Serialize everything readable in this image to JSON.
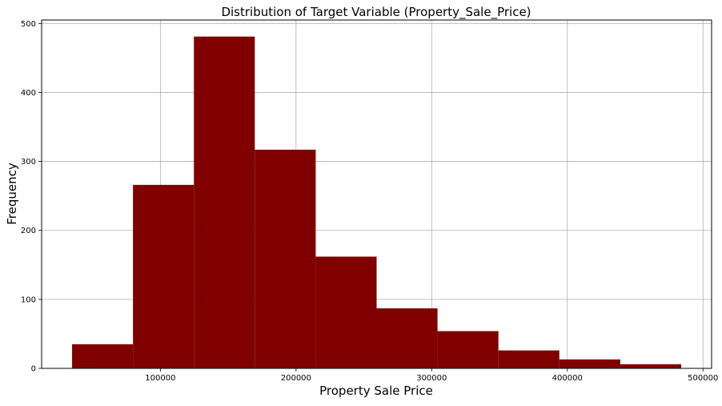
{
  "chart_data": {
    "type": "bar",
    "title": "Distribution of Target Variable (Property_Sale_Price)",
    "xlabel": "Property Sale Price",
    "ylabel": "Frequency",
    "bin_edges": [
      34900,
      79800,
      124700,
      169600,
      214500,
      259400,
      304300,
      349200,
      394100,
      439000,
      483900
    ],
    "values": [
      35,
      266,
      481,
      317,
      162,
      87,
      54,
      26,
      13,
      6
    ],
    "xlim": [
      12450,
      506350
    ],
    "ylim": [
      0,
      505
    ],
    "xticks": [
      100000,
      200000,
      300000,
      400000,
      500000
    ],
    "xtick_labels": [
      "100000",
      "200000",
      "300000",
      "400000",
      "500000"
    ],
    "yticks": [
      0,
      100,
      200,
      300,
      400,
      500
    ],
    "ytick_labels": [
      "0",
      "100",
      "200",
      "300",
      "400",
      "500"
    ],
    "bar_color": "#800000",
    "grid": true,
    "grid_color": "#b0b0b0"
  }
}
